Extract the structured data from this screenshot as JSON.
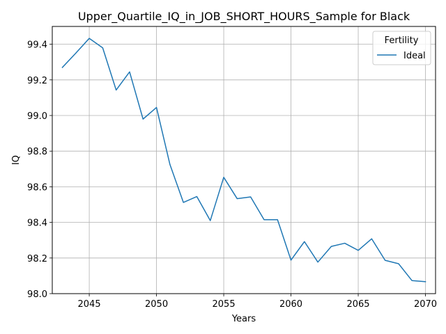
{
  "chart_data": {
    "type": "line",
    "title": "Upper_Quartile_IQ_in_JOB_SHORT_HOURS_Sample for Black",
    "xlabel": "Years",
    "ylabel": "IQ",
    "xlim": [
      2042.25,
      2070.75
    ],
    "ylim": [
      98.0,
      99.5
    ],
    "xticks": [
      2045,
      2050,
      2055,
      2060,
      2065,
      2070
    ],
    "yticks": [
      98.0,
      98.2,
      98.4,
      98.6,
      98.8,
      99.0,
      99.2,
      99.4
    ],
    "ytick_labels": [
      "98.0",
      "98.2",
      "98.4",
      "98.6",
      "98.8",
      "99.0",
      "99.2",
      "99.4"
    ],
    "grid": true,
    "legend": {
      "title": "Fertility",
      "placement": "top-right"
    },
    "series": [
      {
        "name": "Ideal",
        "color": "#1f77b4",
        "x": [
          2043,
          2044,
          2045,
          2046,
          2047,
          2048,
          2049,
          2050,
          2051,
          2052,
          2053,
          2054,
          2055,
          2056,
          2057,
          2058,
          2059,
          2060,
          2061,
          2062,
          2063,
          2064,
          2065,
          2066,
          2067,
          2068,
          2069,
          2070
        ],
        "y": [
          99.27,
          99.35,
          99.433,
          99.38,
          99.143,
          99.245,
          98.98,
          99.045,
          98.725,
          98.512,
          98.545,
          98.41,
          98.653,
          98.533,
          98.543,
          98.415,
          98.415,
          98.188,
          98.292,
          98.177,
          98.265,
          98.283,
          98.243,
          98.308,
          98.187,
          98.168,
          98.073,
          98.067
        ]
      }
    ]
  }
}
